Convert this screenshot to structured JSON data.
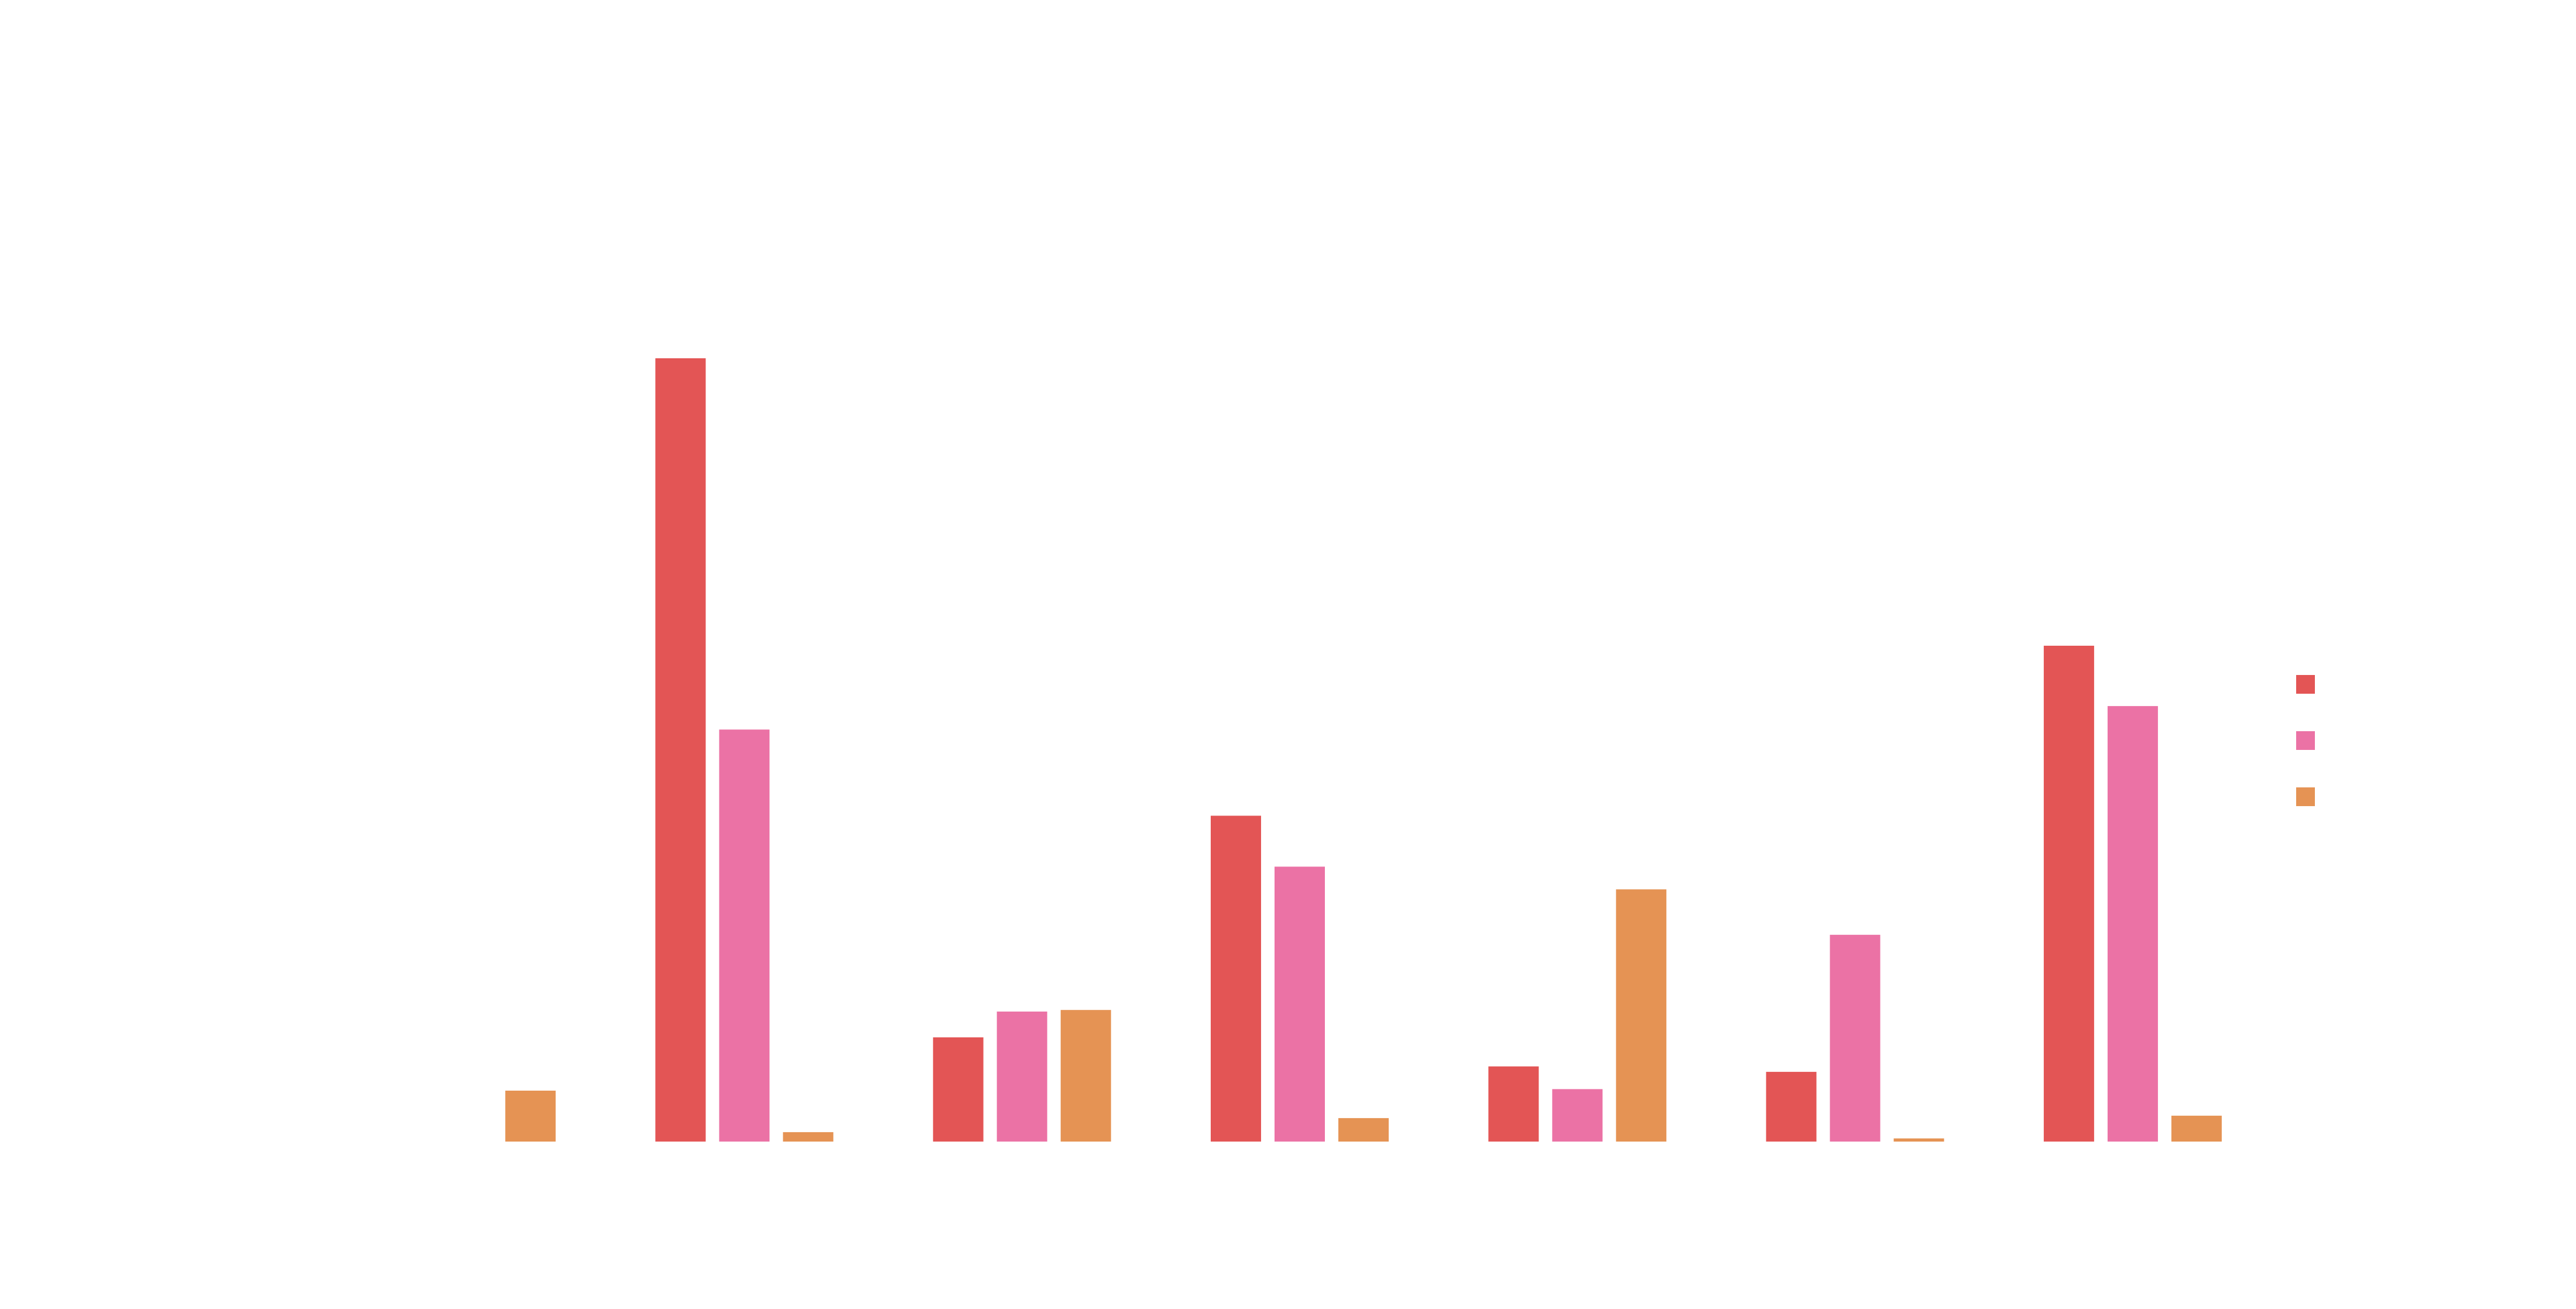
{
  "chart_data": {
    "type": "bar",
    "title": "",
    "xlabel": "",
    "ylabel": "",
    "categories": [
      "",
      "",
      "",
      "",
      "",
      "",
      ""
    ],
    "ylim": [
      0,
      100
    ],
    "grid": false,
    "legend": {
      "position": "right",
      "entries": [
        "",
        "",
        ""
      ]
    },
    "series": [
      {
        "color": "#e35555",
        "values": [
          0,
          100,
          13.3,
          41.6,
          9.6,
          8.9,
          63.3
        ]
      },
      {
        "color": "#eb72a5",
        "values": [
          0,
          52.6,
          16.6,
          35.1,
          6.7,
          26.4,
          55.6
        ]
      },
      {
        "color": "#e59354",
        "values": [
          6.5,
          1.2,
          16.8,
          3.0,
          32.2,
          0.4,
          3.3
        ]
      }
    ]
  }
}
